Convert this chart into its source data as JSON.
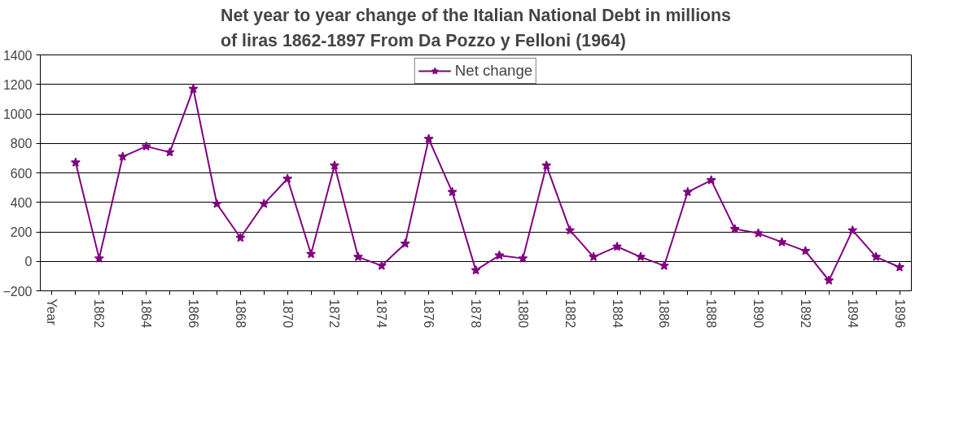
{
  "chart_data": {
    "type": "line",
    "title": "Net year to year change of the Italian National Debt in millions of liras 1862-1897 From Da Pozzo y Felloni (1964)",
    "categories": [
      "Year",
      null,
      "1862",
      null,
      "1864",
      null,
      "1866",
      null,
      "1868",
      null,
      "1870",
      null,
      "1872",
      null,
      "1874",
      null,
      "1876",
      null,
      "1878",
      null,
      "1880",
      null,
      "1882",
      null,
      "1884",
      null,
      "1886",
      null,
      "1888",
      null,
      "1890",
      null,
      "1892",
      null,
      "1894",
      null,
      "1896"
    ],
    "series": [
      {
        "name": "Net change",
        "color": "#800080",
        "values": [
          null,
          670,
          20,
          710,
          780,
          740,
          1170,
          390,
          160,
          390,
          560,
          50,
          650,
          30,
          -30,
          120,
          830,
          470,
          -60,
          40,
          20,
          650,
          210,
          30,
          100,
          30,
          -30,
          470,
          550,
          220,
          190,
          130,
          70,
          -130,
          210,
          30,
          -40
        ]
      }
    ],
    "ylim": [
      -200,
      1400
    ],
    "yticks": [
      -200,
      0,
      200,
      400,
      600,
      800,
      1000,
      1200,
      1400
    ],
    "grid": "y",
    "legend": "top",
    "marker": "star",
    "line_style": "solid"
  }
}
